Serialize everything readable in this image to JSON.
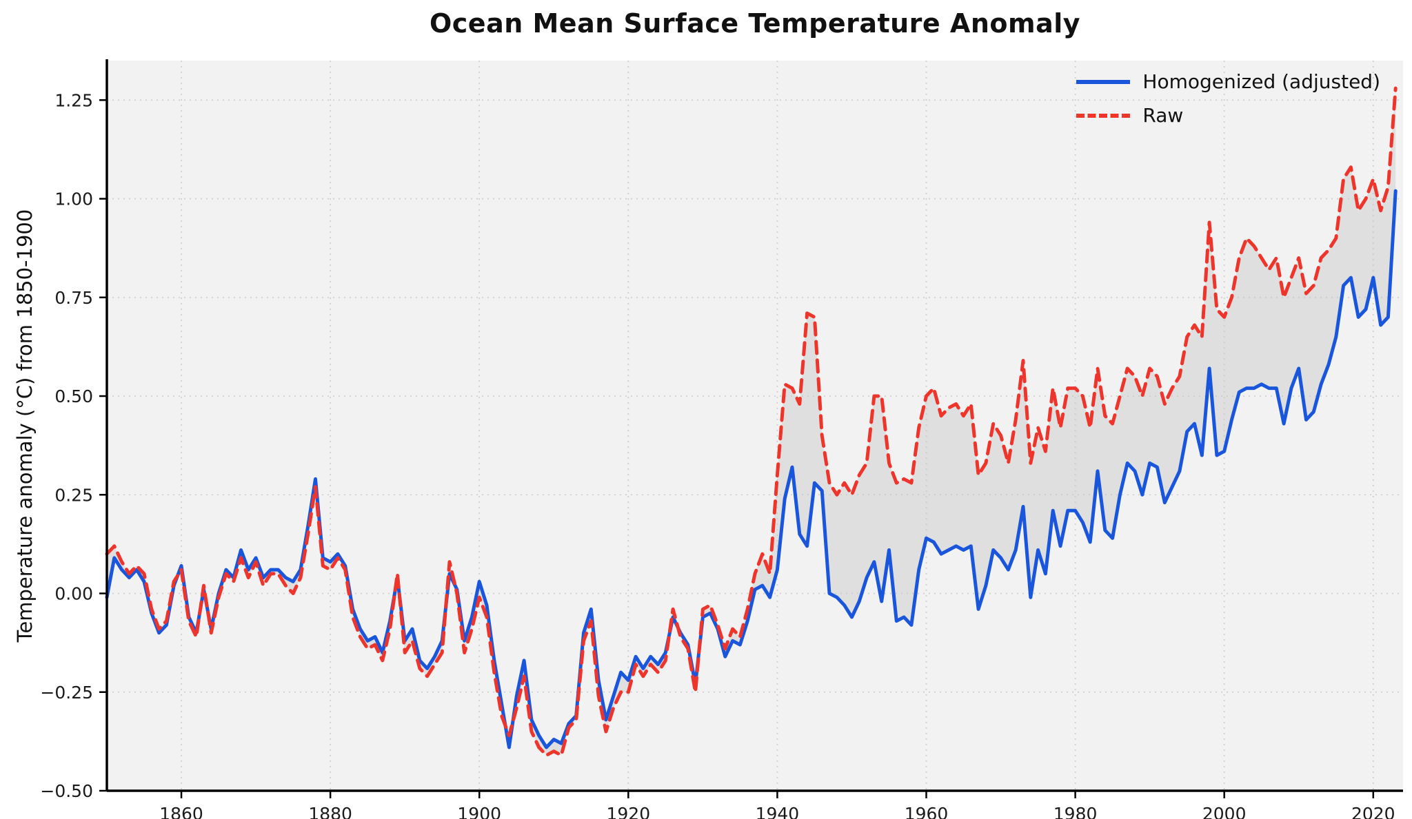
{
  "figure": {
    "title": "Ocean Mean Surface Temperature Anomaly",
    "ylabel": "Temperature anomaly (°C) from 1850-1900"
  },
  "legend": {
    "position": "upper right",
    "items": [
      {
        "label": "Homogenized (adjusted)",
        "color": "#1a56db",
        "style": "solid"
      },
      {
        "label": "Raw",
        "color": "#ee352c",
        "style": "dashed"
      }
    ]
  },
  "colors": {
    "figure_bg": "#ffffff",
    "plot_bg": "#f2f2f2",
    "grid": "#cfcfcf",
    "axis": "#000000",
    "tick_label": "#1a1a1a",
    "fill_between": "#c8c8c8"
  },
  "chart_data": {
    "type": "line",
    "title": "Ocean Mean Surface Temperature Anomaly",
    "xlabel": "",
    "ylabel": "Temperature anomaly (°C) from 1850-1900",
    "xlim": [
      1850,
      2024
    ],
    "ylim": [
      -0.5,
      1.35
    ],
    "grid": true,
    "legend_position": "upper right",
    "x_start": 1850,
    "x_step": 1,
    "x_end": 2023,
    "xticks": {
      "values": [
        1860,
        1880,
        1900,
        1920,
        1940,
        1960,
        1980,
        2000,
        2020
      ],
      "labels": [
        "1860",
        "1880",
        "1900",
        "1920",
        "1940",
        "1960",
        "1980",
        "2000",
        "2020"
      ]
    },
    "yticks": {
      "values": [
        -0.5,
        -0.25,
        0.0,
        0.25,
        0.5,
        0.75,
        1.0,
        1.25
      ],
      "labels": [
        "−0.50",
        "−0.25",
        "0.00",
        "0.25",
        "0.50",
        "0.75",
        "1.00",
        "1.25"
      ]
    },
    "fill_between": {
      "between": [
        "Homogenized (adjusted)",
        "Raw"
      ],
      "color": "#c8c8c8",
      "opacity": 0.45
    },
    "series": [
      {
        "name": "Homogenized (adjusted)",
        "color": "#1a56db",
        "line_style": "solid",
        "line_width": 5,
        "values": [
          -0.01,
          0.09,
          0.06,
          0.04,
          0.06,
          0.03,
          -0.05,
          -0.1,
          -0.08,
          0.02,
          0.07,
          -0.06,
          -0.1,
          0.01,
          -0.09,
          0.0,
          0.06,
          0.04,
          0.11,
          0.06,
          0.09,
          0.04,
          0.06,
          0.06,
          0.04,
          0.03,
          0.06,
          0.17,
          0.29,
          0.09,
          0.08,
          0.1,
          0.07,
          -0.04,
          -0.09,
          -0.12,
          -0.11,
          -0.15,
          -0.07,
          0.04,
          -0.12,
          -0.09,
          -0.17,
          -0.19,
          -0.16,
          -0.12,
          0.05,
          0.01,
          -0.12,
          -0.06,
          0.03,
          -0.03,
          -0.17,
          -0.28,
          -0.39,
          -0.26,
          -0.17,
          -0.32,
          -0.36,
          -0.39,
          -0.37,
          -0.38,
          -0.33,
          -0.31,
          -0.1,
          -0.04,
          -0.22,
          -0.32,
          -0.26,
          -0.2,
          -0.22,
          -0.16,
          -0.19,
          -0.16,
          -0.18,
          -0.15,
          -0.06,
          -0.1,
          -0.13,
          -0.23,
          -0.06,
          -0.05,
          -0.09,
          -0.16,
          -0.12,
          -0.13,
          -0.07,
          0.01,
          0.02,
          -0.01,
          0.06,
          0.24,
          0.32,
          0.15,
          0.12,
          0.28,
          0.26,
          0.0,
          -0.01,
          -0.03,
          -0.06,
          -0.02,
          0.04,
          0.08,
          -0.02,
          0.11,
          -0.07,
          -0.06,
          -0.08,
          0.06,
          0.14,
          0.13,
          0.1,
          0.11,
          0.12,
          0.11,
          0.12,
          -0.04,
          0.02,
          0.11,
          0.09,
          0.06,
          0.11,
          0.22,
          -0.01,
          0.11,
          0.05,
          0.21,
          0.12,
          0.21,
          0.21,
          0.18,
          0.13,
          0.31,
          0.16,
          0.14,
          0.25,
          0.33,
          0.31,
          0.25,
          0.33,
          0.32,
          0.23,
          0.27,
          0.31,
          0.41,
          0.43,
          0.35,
          0.57,
          0.35,
          0.36,
          0.44,
          0.51,
          0.52,
          0.52,
          0.53,
          0.52,
          0.52,
          0.43,
          0.52,
          0.57,
          0.44,
          0.46,
          0.53,
          0.58,
          0.65,
          0.78,
          0.8,
          0.7,
          0.72,
          0.8,
          0.68,
          0.7,
          1.02
        ]
      },
      {
        "name": "Raw",
        "color": "#ee352c",
        "line_style": "dashed",
        "line_width": 5,
        "values": [
          0.1,
          0.12,
          0.08,
          0.05,
          0.07,
          0.05,
          -0.04,
          -0.09,
          -0.07,
          0.03,
          0.06,
          -0.07,
          -0.11,
          0.02,
          -0.1,
          -0.01,
          0.05,
          0.03,
          0.09,
          0.04,
          0.08,
          0.02,
          0.05,
          0.05,
          0.02,
          0.0,
          0.04,
          0.15,
          0.27,
          0.07,
          0.06,
          0.09,
          0.06,
          -0.06,
          -0.11,
          -0.14,
          -0.13,
          -0.17,
          -0.09,
          0.05,
          -0.15,
          -0.12,
          -0.19,
          -0.21,
          -0.18,
          -0.15,
          0.08,
          0.0,
          -0.15,
          -0.09,
          -0.01,
          -0.06,
          -0.2,
          -0.31,
          -0.36,
          -0.29,
          -0.21,
          -0.35,
          -0.39,
          -0.41,
          -0.4,
          -0.41,
          -0.34,
          -0.32,
          -0.12,
          -0.07,
          -0.26,
          -0.35,
          -0.29,
          -0.25,
          -0.25,
          -0.18,
          -0.21,
          -0.18,
          -0.2,
          -0.17,
          -0.04,
          -0.11,
          -0.14,
          -0.25,
          -0.04,
          -0.03,
          -0.08,
          -0.14,
          -0.09,
          -0.11,
          -0.04,
          0.05,
          0.1,
          0.05,
          0.3,
          0.53,
          0.52,
          0.48,
          0.71,
          0.7,
          0.4,
          0.28,
          0.25,
          0.28,
          0.25,
          0.3,
          0.33,
          0.5,
          0.5,
          0.33,
          0.28,
          0.29,
          0.28,
          0.42,
          0.5,
          0.52,
          0.45,
          0.47,
          0.48,
          0.45,
          0.48,
          0.3,
          0.33,
          0.43,
          0.4,
          0.33,
          0.44,
          0.59,
          0.33,
          0.42,
          0.36,
          0.52,
          0.42,
          0.52,
          0.52,
          0.5,
          0.42,
          0.57,
          0.45,
          0.43,
          0.5,
          0.57,
          0.55,
          0.5,
          0.57,
          0.55,
          0.48,
          0.52,
          0.55,
          0.65,
          0.68,
          0.65,
          0.94,
          0.72,
          0.7,
          0.75,
          0.85,
          0.9,
          0.88,
          0.85,
          0.82,
          0.85,
          0.75,
          0.8,
          0.85,
          0.76,
          0.78,
          0.85,
          0.87,
          0.9,
          1.05,
          1.08,
          0.97,
          1.0,
          1.05,
          0.97,
          1.03,
          1.28
        ]
      }
    ]
  }
}
